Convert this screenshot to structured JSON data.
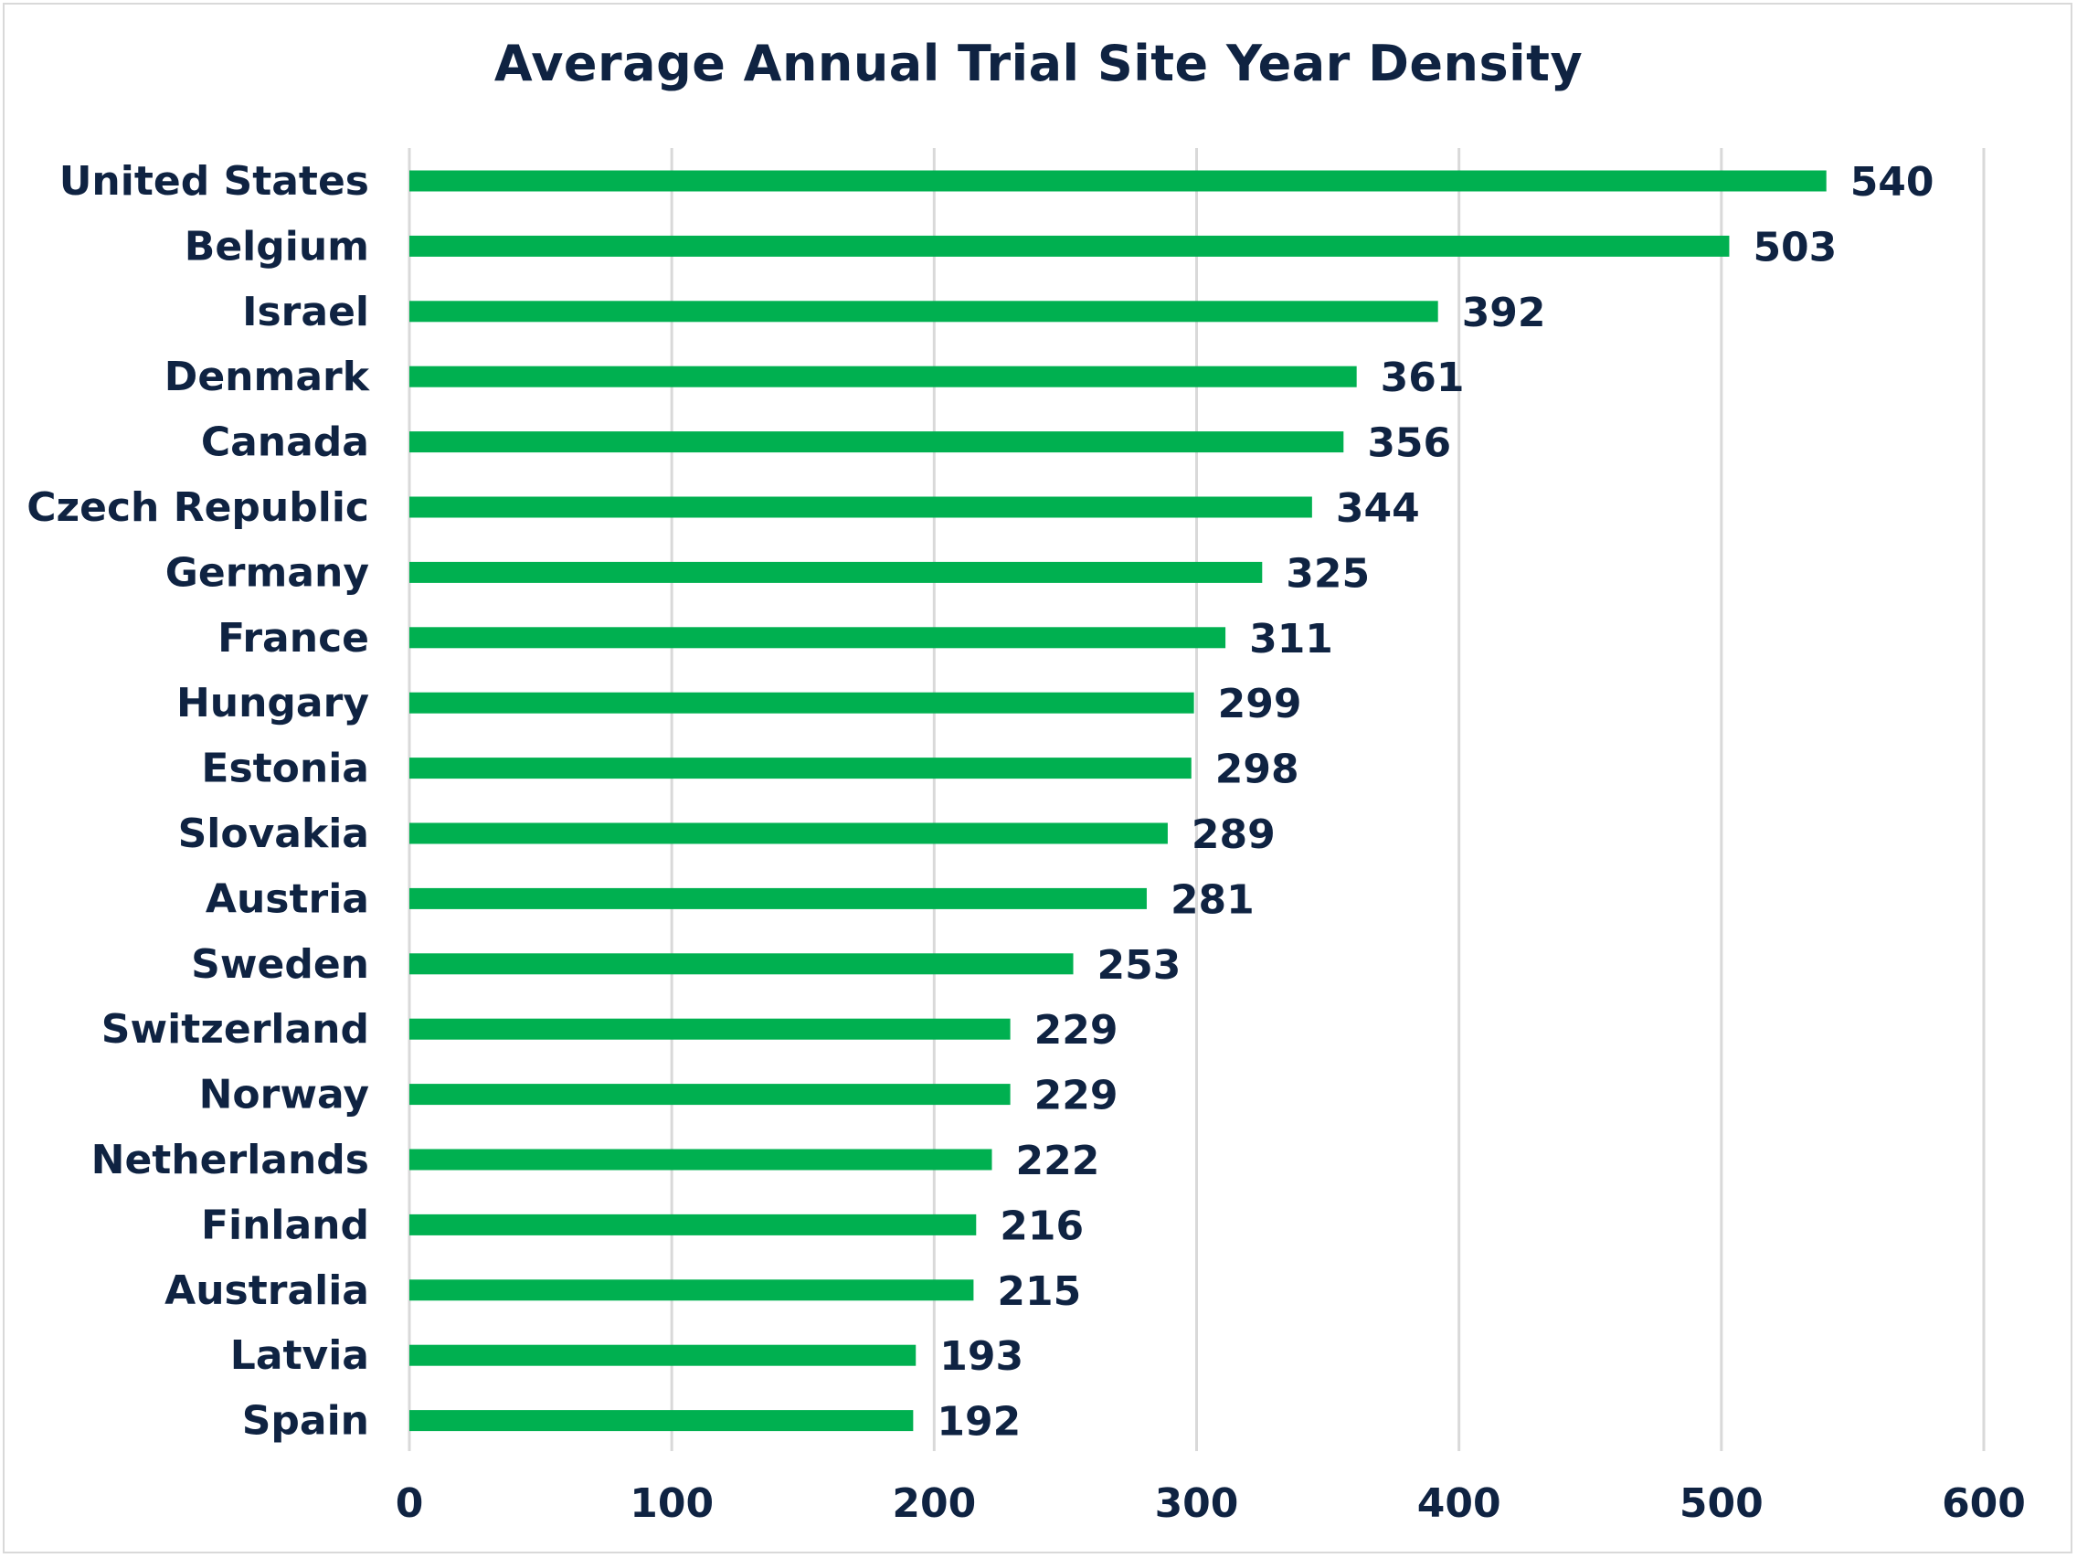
{
  "chart_data": {
    "type": "bar",
    "orientation": "horizontal",
    "title": "Average Annual Trial Site Year Density",
    "categories": [
      "United States",
      "Belgium",
      "Israel",
      "Denmark",
      "Canada",
      "Czech Republic",
      "Germany",
      "France",
      "Hungary",
      "Estonia",
      "Slovakia",
      "Austria",
      "Sweden",
      "Switzerland",
      "Norway",
      "Netherlands",
      "Finland",
      "Australia",
      "Latvia",
      "Spain"
    ],
    "values": [
      540,
      503,
      392,
      361,
      356,
      344,
      325,
      311,
      299,
      298,
      289,
      281,
      253,
      229,
      229,
      222,
      216,
      215,
      193,
      192
    ],
    "xlim": [
      0,
      600
    ],
    "xticks": [
      0,
      100,
      200,
      300,
      400,
      500,
      600
    ],
    "grid": true,
    "data_labels": true,
    "legend": "none",
    "bar_color": "#00b050",
    "text_color": "#0f2342",
    "grid_color": "#d9d9d9"
  }
}
